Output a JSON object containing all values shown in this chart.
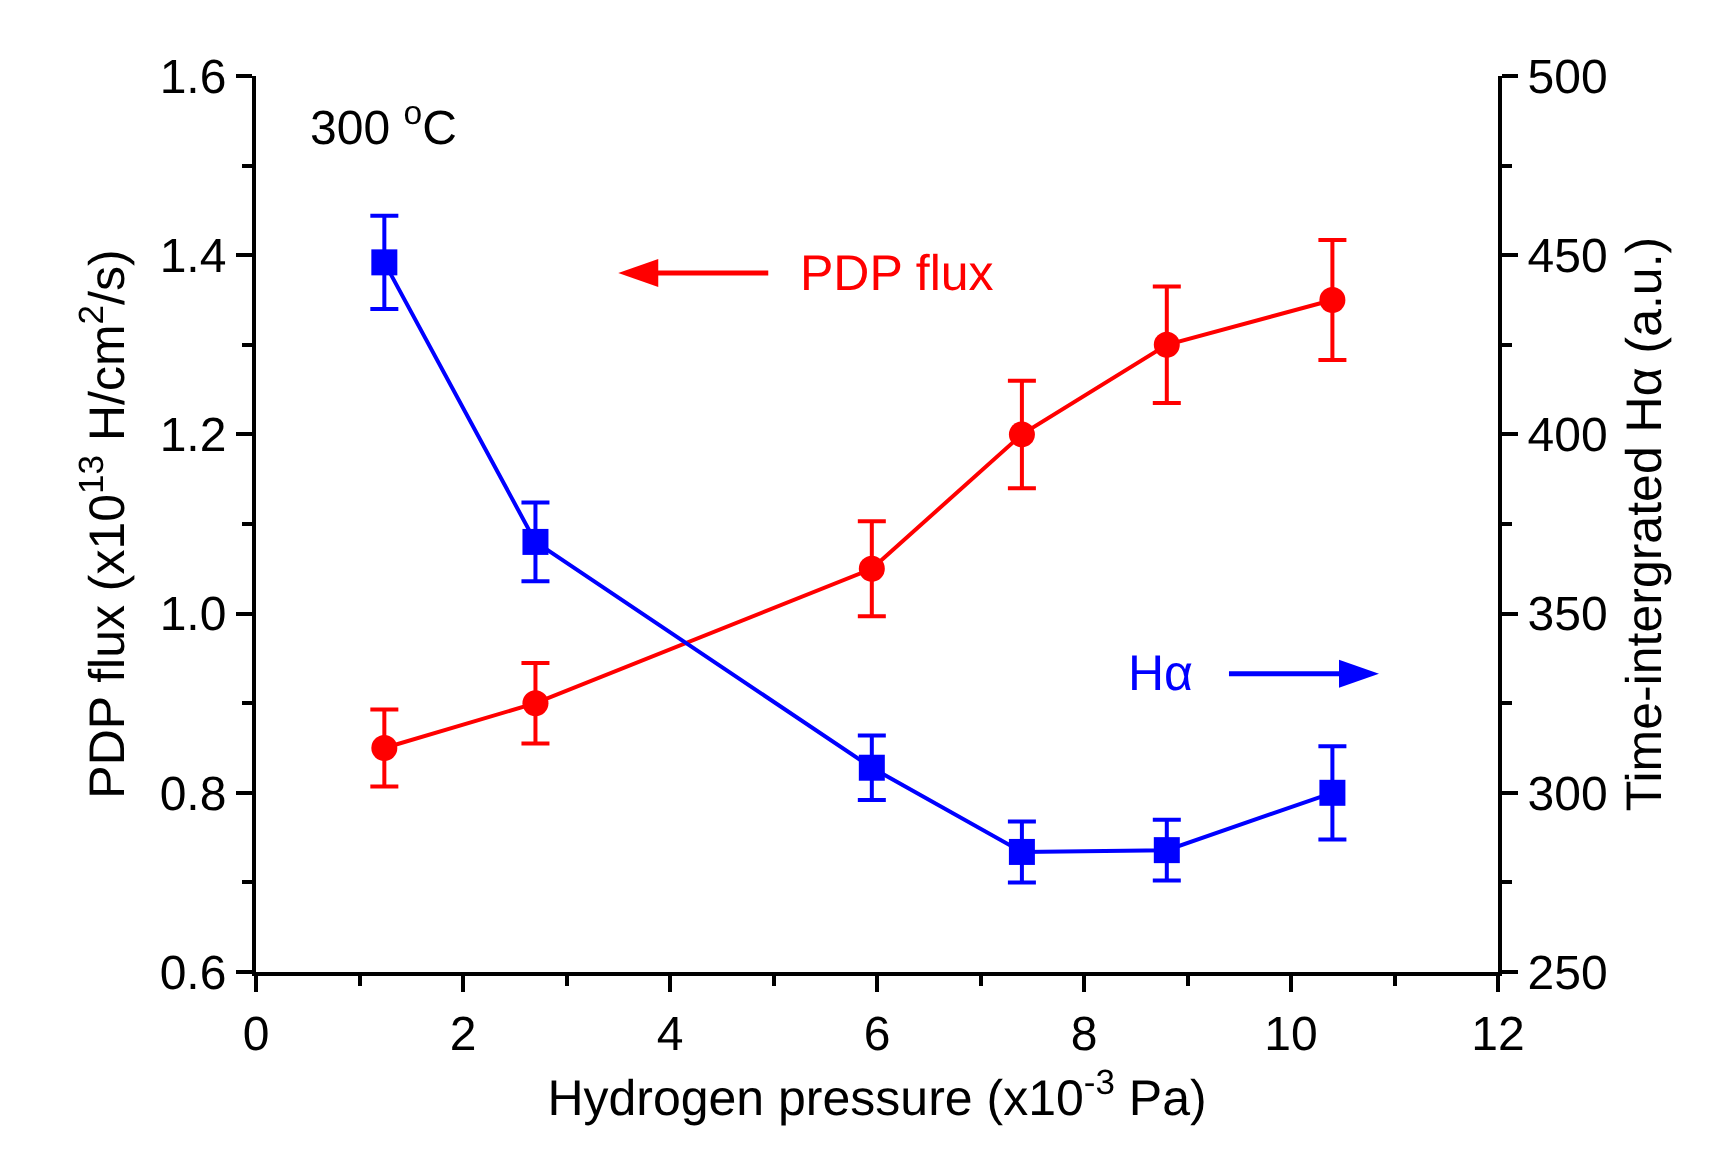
{
  "chart_data": {
    "type": "line",
    "xlabel": "Hydrogen pressure (x10$^{-3}$ Pa)",
    "ylabel": "PDP flux (x10$^{13}$ H/cm$^{2}$/s)",
    "y2label": "Time-intergrated Hα (a.u.)",
    "annotations": [
      "300 $^{o}$C"
    ],
    "x": [
      1.24,
      2.7,
      5.95,
      7.4,
      8.8,
      10.4
    ],
    "series": [
      {
        "name": "PDP flux",
        "color": "#ff0000",
        "marker": "circle",
        "values": [
          0.85,
          0.9,
          1.05,
          1.2,
          1.3,
          1.35
        ],
        "errors": [
          0.043,
          0.045,
          0.053,
          0.06,
          0.065,
          0.067
        ]
      },
      {
        "name": "Hα",
        "color": "#0000ff",
        "marker": "square",
        "axis": "y2",
        "values": [
          448,
          370,
          307,
          283.5,
          284,
          300
        ],
        "errors": [
          13,
          11,
          9,
          8.5,
          8.5,
          13
        ]
      }
    ],
    "xlim": [
      0,
      12
    ],
    "xticks": [
      0,
      2,
      4,
      6,
      8,
      10,
      12
    ],
    "ylim": [
      0.6,
      1.6
    ],
    "yticks": [
      0.6,
      0.8,
      {
        "value": 1,
        "label": "1.0"
      },
      1.2,
      1.4,
      1.6
    ],
    "y2lim": [
      250,
      500
    ],
    "y2ticks": [
      250,
      300,
      350,
      400,
      450,
      500
    ],
    "grid": false,
    "legend": "top",
    "line_style": "solid"
  }
}
